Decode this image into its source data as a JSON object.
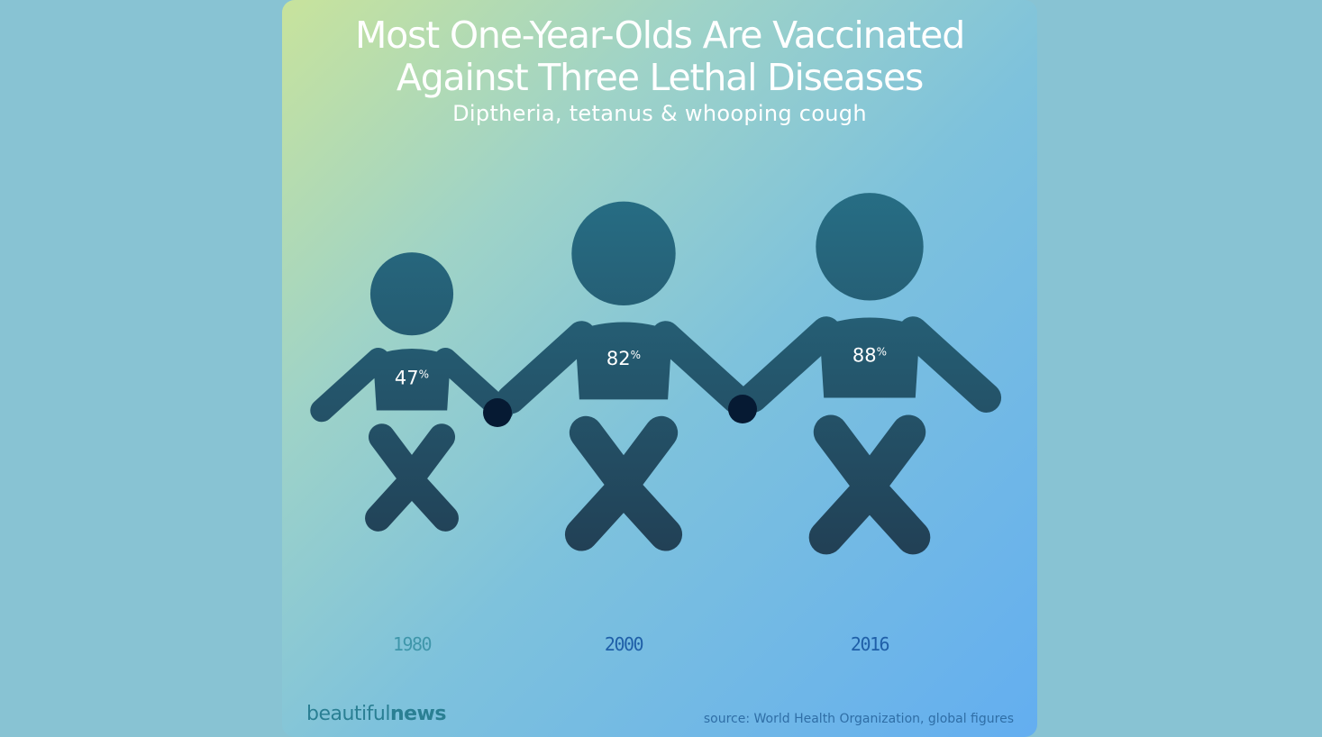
{
  "header": {
    "title": "Most One-Year-Olds Are Vaccinated Against Three Lethal Diseases",
    "subtitle": "Diptheria, tetanus & whooping cough"
  },
  "footer": {
    "brand_regular": "beautiful",
    "brand_bold": "news",
    "source": "source: World Health Organization, global figures"
  },
  "colors": {
    "figure_top": "#276f86",
    "figure_bottom": "#213b50",
    "hand_overlap": "#061a33",
    "label_1980": "#3f96aa",
    "label_other": "#1f5fa8"
  },
  "chart_data": {
    "type": "bar",
    "title": "Most One-Year-Olds Are Vaccinated Against Three Lethal Diseases",
    "subtitle": "Diptheria, tetanus & whooping cough",
    "categories": [
      "1980",
      "2000",
      "2016"
    ],
    "values": [
      47,
      82,
      88
    ],
    "unit": "%",
    "value_labels": [
      "47%",
      "82%",
      "88%"
    ],
    "xlabel": "",
    "ylabel": ""
  }
}
